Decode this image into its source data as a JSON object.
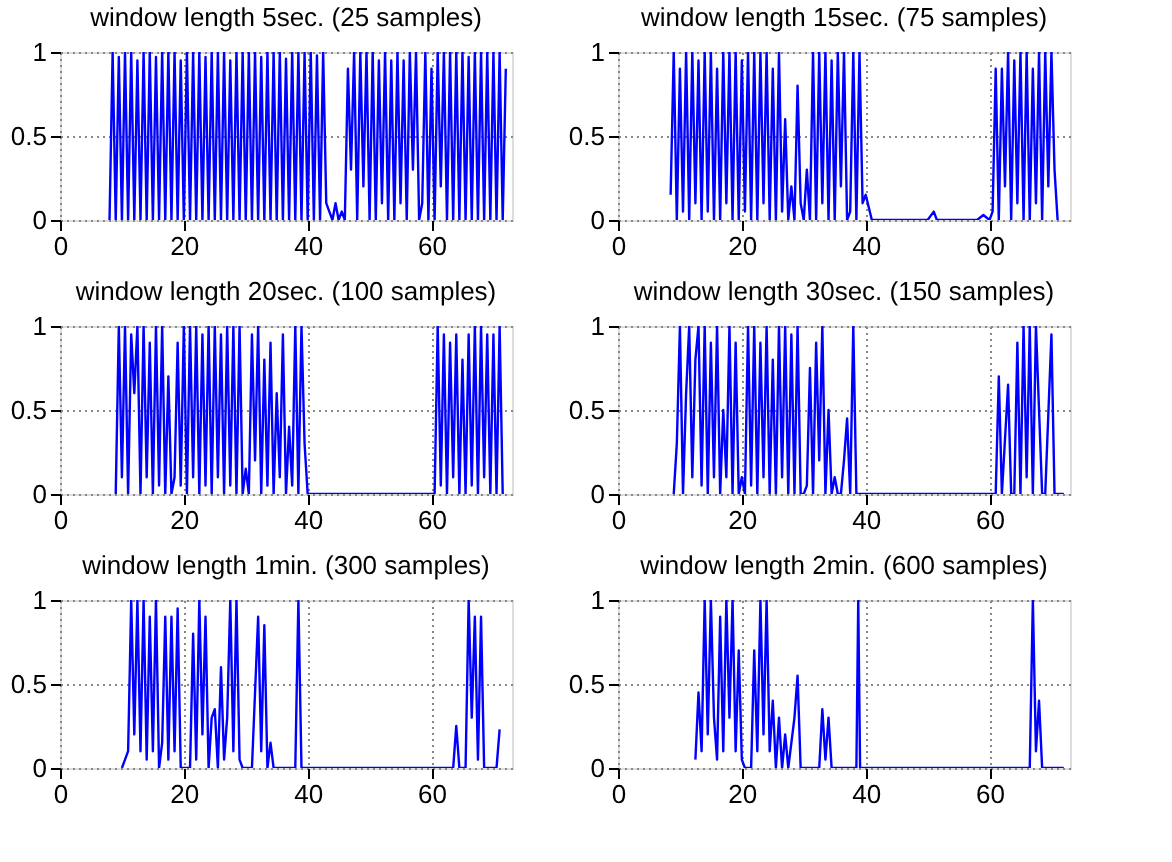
{
  "chart_data": [
    {
      "type": "line",
      "title": "window length 5sec. (25 samples)",
      "xlim": [
        0,
        73
      ],
      "ylim": [
        0,
        1
      ],
      "xticks": [
        0,
        20,
        40,
        60
      ],
      "yticks": [
        0,
        0.5,
        1
      ],
      "grid": true,
      "series": [
        {
          "color": "#0000ff",
          "x": [
            8,
            8.5,
            9,
            9.5,
            10,
            10.5,
            11,
            11.5,
            12,
            12.5,
            13,
            13.5,
            14,
            14.5,
            15,
            15.5,
            16,
            16.5,
            17,
            17.5,
            18,
            18.5,
            19,
            19.5,
            20,
            20.5,
            21,
            21.5,
            22,
            22.5,
            23,
            23.5,
            24,
            24.5,
            25,
            25.5,
            26,
            26.5,
            27,
            27.5,
            28,
            28.5,
            29,
            29.5,
            30,
            30.5,
            31,
            31.5,
            32,
            32.5,
            33,
            33.5,
            34,
            34.5,
            35,
            35.5,
            36,
            36.5,
            37,
            37.5,
            38,
            38.5,
            39,
            39.5,
            40,
            40.5,
            41,
            41.5,
            42,
            42.5,
            43,
            43.5,
            44,
            44.5,
            45,
            45.5,
            46,
            46.5,
            47,
            47.5,
            48,
            48.5,
            49,
            49.5,
            50,
            50.5,
            51,
            51.5,
            52,
            52.5,
            53,
            53.5,
            54,
            54.5,
            55,
            55.5,
            56,
            56.5,
            57,
            57.5,
            58,
            58.5,
            59,
            59.5,
            60,
            60.5,
            61,
            61.5,
            62,
            62.5,
            63,
            63.5,
            64,
            64.5,
            65,
            65.5,
            66,
            66.5,
            67,
            67.5,
            68,
            68.5,
            69,
            69.5,
            70,
            70.5,
            71,
            71.5,
            72
          ],
          "values": [
            0,
            1,
            0,
            0.97,
            0,
            1,
            0,
            1,
            0,
            0.95,
            0,
            1,
            0,
            1,
            0,
            0.97,
            0,
            1,
            0,
            1,
            0,
            1,
            0,
            0.95,
            0,
            1,
            0,
            1,
            0,
            1,
            0,
            0.97,
            0,
            1,
            0,
            1,
            0,
            1,
            0,
            0.95,
            0,
            1,
            0,
            1,
            0,
            1,
            0,
            1,
            0,
            0.97,
            0,
            1,
            0,
            1,
            0,
            1,
            0,
            0.96,
            0,
            1,
            0,
            1,
            0,
            1,
            0,
            1,
            0,
            0.98,
            0,
            1,
            0.1,
            0.05,
            0,
            0.1,
            0,
            0.05,
            0,
            0.9,
            0.3,
            1,
            0,
            1,
            0.2,
            1,
            0,
            1,
            0,
            0.95,
            0.1,
            1,
            0,
            0.95,
            0,
            1,
            0.1,
            0.95,
            0,
            1,
            0.3,
            1,
            0,
            0.1,
            1,
            0,
            0.9,
            0,
            1,
            0.2,
            1,
            0,
            1,
            0,
            1,
            0,
            1,
            0,
            0.97,
            0,
            1,
            0,
            1,
            0,
            1,
            0,
            1,
            0,
            1,
            0,
            0.9
          ]
        }
      ]
    },
    {
      "type": "line",
      "title": "window length 15sec. (75 samples)",
      "xlim": [
        0,
        73
      ],
      "ylim": [
        0,
        1
      ],
      "xticks": [
        0,
        20,
        40,
        60
      ],
      "yticks": [
        0,
        0.5,
        1
      ],
      "grid": true,
      "series": [
        {
          "color": "#0000ff",
          "x": [
            8.5,
            9,
            9.5,
            10,
            10.5,
            11,
            11.5,
            12,
            12.5,
            13,
            13.5,
            14,
            14.5,
            15,
            15.5,
            16,
            16.5,
            17,
            17.5,
            18,
            18.5,
            19,
            19.5,
            20,
            20.5,
            21,
            21.5,
            22,
            22.5,
            23,
            23.5,
            24,
            24.5,
            25,
            25.5,
            26,
            26.5,
            27,
            27.5,
            28,
            28.5,
            29,
            29.5,
            30,
            30.5,
            31,
            31.5,
            32,
            32.5,
            33,
            33.5,
            34,
            34.5,
            35,
            35.5,
            36,
            36.5,
            37,
            37.5,
            38,
            38.5,
            39,
            39.5,
            40,
            41,
            45,
            50,
            51,
            51.5,
            52,
            55,
            58,
            59,
            60,
            60.5,
            61,
            61.5,
            62,
            62.5,
            63,
            63.5,
            64,
            64.5,
            65,
            65.5,
            66,
            66.5,
            67,
            67.5,
            68,
            68.5,
            69,
            69.5,
            70,
            70.5,
            71
          ],
          "values": [
            0.15,
            1,
            0,
            0.9,
            0.05,
            1,
            0,
            1,
            0.1,
            0.95,
            0,
            1,
            0.05,
            1,
            0,
            0.9,
            0,
            1,
            0.1,
            1,
            0,
            1,
            0,
            0.95,
            0.05,
            1,
            0,
            1,
            0,
            1,
            0.1,
            1,
            0,
            0.9,
            0,
            1,
            0.05,
            0.6,
            0,
            0.2,
            0,
            0.8,
            0.1,
            0,
            0.3,
            0,
            1,
            0,
            1,
            0.1,
            1,
            0,
            0.95,
            0,
            1,
            0.2,
            1,
            0,
            0.05,
            1,
            0,
            1,
            0.1,
            0.15,
            0,
            0,
            0,
            0.05,
            0,
            0,
            0,
            0,
            0.03,
            0,
            0.05,
            0.9,
            0,
            0.9,
            0.2,
            1,
            0,
            0.95,
            0.1,
            1,
            0,
            1,
            0,
            0.9,
            0.1,
            1,
            0,
            1,
            0.2,
            1,
            0.3,
            0
          ]
        }
      ]
    },
    {
      "type": "line",
      "title": "window length 20sec. (100 samples)",
      "xlim": [
        0,
        73
      ],
      "ylim": [
        0,
        1
      ],
      "xticks": [
        0,
        20,
        40,
        60
      ],
      "yticks": [
        0,
        0.5,
        1
      ],
      "grid": true,
      "series": [
        {
          "color": "#0000ff",
          "x": [
            9,
            9.5,
            10,
            10.5,
            11,
            11.5,
            12,
            12.5,
            13,
            13.5,
            14,
            14.5,
            15,
            15.5,
            16,
            16.5,
            17,
            17.5,
            18,
            18.5,
            19,
            19.5,
            20,
            20.5,
            21,
            21.5,
            22,
            22.5,
            23,
            23.5,
            24,
            24.5,
            25,
            25.5,
            26,
            26.5,
            27,
            27.5,
            28,
            28.5,
            29,
            29.5,
            30,
            30.5,
            31,
            31.5,
            32,
            32.5,
            33,
            33.5,
            34,
            34.5,
            35,
            35.5,
            36,
            36.5,
            37,
            37.5,
            38,
            38.5,
            39,
            39.5,
            40,
            45,
            55,
            60.5,
            61,
            61.5,
            62,
            62.5,
            63,
            63.5,
            64,
            64.5,
            65,
            65.5,
            66,
            66.5,
            67,
            67.5,
            68,
            68.5,
            69,
            69.5,
            70,
            70.5,
            71,
            71.5
          ],
          "values": [
            0,
            1,
            0.1,
            1,
            0,
            0.95,
            0.6,
            1,
            0,
            1,
            0.1,
            0.9,
            0,
            1,
            0.05,
            1,
            0,
            0.7,
            0,
            0.1,
            0.9,
            0.05,
            1,
            0,
            1,
            0.1,
            1,
            0,
            0.95,
            0.05,
            1,
            0,
            1,
            0.1,
            0.95,
            0,
            1,
            0.05,
            1,
            0,
            1,
            0,
            0.15,
            0,
            0.95,
            0.2,
            1,
            0,
            0.8,
            0.05,
            0.9,
            0,
            0.6,
            0.1,
            0.95,
            0,
            0.4,
            0.05,
            1,
            0,
            1,
            0.3,
            0,
            0,
            0,
            0,
            1,
            0.05,
            0.95,
            0,
            0.9,
            0.1,
            0.95,
            0,
            0.8,
            0,
            0.95,
            0.05,
            1,
            0,
            1,
            0.1,
            0.95,
            0,
            0.95,
            0,
            1,
            0
          ]
        }
      ]
    },
    {
      "type": "line",
      "title": "window length 30sec. (150 samples)",
      "xlim": [
        0,
        73
      ],
      "ylim": [
        0,
        1
      ],
      "xticks": [
        0,
        20,
        40,
        60
      ],
      "yticks": [
        0,
        0.5,
        1
      ],
      "grid": true,
      "series": [
        {
          "color": "#0000ff",
          "x": [
            9,
            9.5,
            10,
            10.5,
            11,
            11.5,
            12,
            12.5,
            13,
            13.5,
            14,
            14.5,
            15,
            15.5,
            16,
            16.5,
            17,
            17.5,
            18,
            18.5,
            19,
            19.5,
            20,
            20.5,
            21,
            21.5,
            22,
            22.5,
            23,
            23.5,
            24,
            24.5,
            25,
            25.5,
            26,
            26.5,
            27,
            27.5,
            28,
            28.5,
            29,
            29.5,
            30,
            30.5,
            31,
            31.5,
            32,
            32.5,
            33,
            33.5,
            34,
            34.5,
            35,
            35.5,
            36,
            36.5,
            37,
            37.5,
            38,
            38.5,
            39,
            39.5,
            40,
            50,
            60,
            61,
            61.5,
            62,
            63,
            63.5,
            64,
            64.5,
            65,
            65.5,
            66,
            66.5,
            67,
            67.5,
            68,
            68.5,
            69,
            70,
            70.5,
            72
          ],
          "values": [
            0,
            0.3,
            1,
            0,
            0.6,
            1,
            0.1,
            0.8,
            1,
            0.05,
            1,
            0,
            0.9,
            0.1,
            1,
            0,
            0.5,
            0.1,
            1,
            0,
            0.9,
            0,
            0.1,
            0,
            1,
            0.05,
            1,
            0,
            0.9,
            0.1,
            1,
            0,
            0.8,
            0,
            1,
            0.1,
            1,
            0,
            0.95,
            0,
            1,
            0,
            0,
            0.05,
            0.75,
            0,
            0.9,
            0.2,
            1,
            0,
            0.5,
            0,
            0.1,
            0,
            0,
            0.2,
            0.45,
            0,
            1,
            0,
            0,
            0,
            0,
            0,
            0,
            0,
            0.7,
            0,
            0.65,
            0,
            0,
            0.9,
            0,
            1,
            0.1,
            1,
            0,
            1,
            0.5,
            0,
            0,
            0.95,
            0,
            0
          ]
        }
      ]
    },
    {
      "type": "line",
      "title": "window length 1min. (300 samples)",
      "xlim": [
        0,
        73
      ],
      "ylim": [
        0,
        1
      ],
      "xticks": [
        0,
        20,
        40,
        60
      ],
      "yticks": [
        0,
        0.5,
        1
      ],
      "grid": true,
      "series": [
        {
          "color": "#0000ff",
          "x": [
            10,
            10.5,
            11,
            11.5,
            12,
            12.5,
            13,
            13.5,
            14,
            14.5,
            15,
            15.5,
            16,
            16.5,
            17,
            17.5,
            18,
            18.5,
            19,
            19.5,
            20,
            21,
            21.5,
            22,
            22.5,
            23,
            23.5,
            24,
            24.5,
            25,
            25.5,
            26,
            26.5,
            27,
            27.5,
            28,
            28.5,
            29,
            29.5,
            30,
            31,
            32,
            32.5,
            33,
            33.5,
            34,
            34.5,
            35,
            38,
            38.5,
            39,
            40,
            50,
            60,
            63.5,
            64,
            64.5,
            65.5,
            66,
            66.5,
            67,
            67.5,
            68,
            68.5,
            70,
            70.5,
            71
          ],
          "values": [
            0,
            0.05,
            0.1,
            1,
            0.2,
            1,
            0.1,
            1,
            0.05,
            0.9,
            0.1,
            1,
            0,
            0.15,
            0.9,
            0.05,
            0.9,
            0.1,
            0.95,
            0,
            0,
            0,
            0.8,
            0.05,
            1,
            0.2,
            0.9,
            0,
            0.3,
            0.35,
            0,
            0.6,
            0.05,
            0.3,
            1,
            0.1,
            1,
            0.05,
            0,
            0,
            0,
            0.9,
            0.1,
            0.85,
            0,
            0.15,
            0,
            0,
            0,
            1,
            0,
            0,
            0,
            0,
            0,
            0.25,
            0,
            0,
            1,
            0.3,
            0.9,
            0.05,
            0.9,
            0,
            0,
            0,
            0.23
          ]
        }
      ]
    },
    {
      "type": "line",
      "title": "window length 2min. (600 samples)",
      "xlim": [
        0,
        73
      ],
      "ylim": [
        0,
        1
      ],
      "xticks": [
        0,
        20,
        40,
        60
      ],
      "yticks": [
        0,
        0.5,
        1
      ],
      "grid": true,
      "series": [
        {
          "color": "#0000ff",
          "x": [
            12.5,
            13,
            13.5,
            14,
            14.5,
            15,
            15.5,
            16,
            16.5,
            17,
            17.5,
            18,
            18.5,
            19,
            19.5,
            20,
            20.5,
            21.5,
            22,
            22.5,
            23,
            23.5,
            24,
            24.5,
            25,
            25.5,
            26,
            26.5,
            27,
            27.5,
            28.5,
            29,
            29.5,
            30,
            32.5,
            33,
            33.5,
            34,
            34.5,
            38.5,
            38.8,
            39.1,
            50,
            66.5,
            67,
            67.5,
            68,
            68.5,
            72
          ],
          "values": [
            0.05,
            0.45,
            0.1,
            1,
            0.2,
            1,
            0.3,
            0.05,
            0.9,
            0.1,
            1,
            0.3,
            1,
            0.1,
            0.7,
            0.05,
            0,
            0,
            0.7,
            0.1,
            1,
            0.2,
            1,
            0.1,
            0.4,
            0,
            0.3,
            0,
            0.2,
            0,
            0.3,
            0.55,
            0,
            0,
            0,
            0.35,
            0.05,
            0.3,
            0,
            0,
            1,
            0,
            0,
            0,
            1,
            0.1,
            0.4,
            0,
            0
          ]
        }
      ]
    }
  ]
}
